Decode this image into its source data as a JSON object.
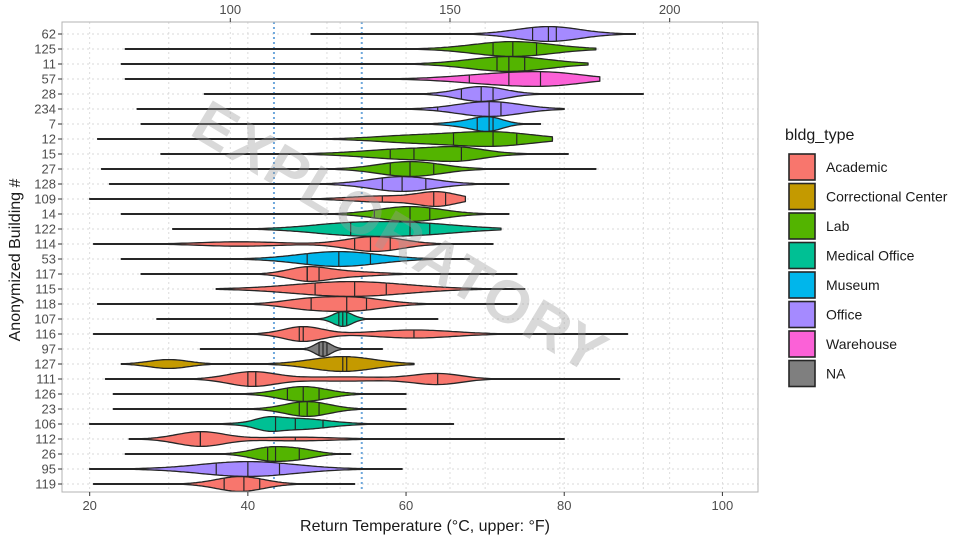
{
  "chart_data": {
    "type": "violin",
    "xlabel": "Return Temperature (°C, upper: °F)",
    "ylabel": "Anonymized Building #",
    "watermark": "EXPLORATORY",
    "xlim": [
      16.5,
      104.5
    ],
    "x_ticks": [
      20,
      40,
      60,
      80,
      100
    ],
    "x_ticks_upper_F": [
      100,
      150,
      200
    ],
    "reference_lines_C": [
      43.3,
      54.4
    ],
    "reference_line_color": "#6fa8dc",
    "grid": true,
    "legend_title": "bldg_type",
    "legend_position": "right",
    "types": [
      {
        "name": "Academic",
        "color": "#F8766D"
      },
      {
        "name": "Correctional Center",
        "color": "#C49A00"
      },
      {
        "name": "Lab",
        "color": "#53B400"
      },
      {
        "name": "Medical Office",
        "color": "#00C094"
      },
      {
        "name": "Museum",
        "color": "#00B6EB"
      },
      {
        "name": "Office",
        "color": "#A58AFF"
      },
      {
        "name": "Warehouse",
        "color": "#FB61D7"
      },
      {
        "name": "NA",
        "color": "#7F7F7F"
      }
    ],
    "buildings": [
      {
        "id": "62",
        "type": "Office",
        "min": 48,
        "max": 89,
        "q1": 76,
        "median": 78,
        "q3": 79,
        "peaks": [
          [
            78,
            1.0,
            4
          ]
        ]
      },
      {
        "id": "125",
        "type": "Lab",
        "min": 24.5,
        "max": 84,
        "q1": 71,
        "median": 73.5,
        "q3": 76.5,
        "peaks": [
          [
            73.5,
            1.0,
            5
          ]
        ]
      },
      {
        "id": "11",
        "type": "Lab",
        "min": 24,
        "max": 83,
        "q1": 71.5,
        "median": 73,
        "q3": 75,
        "peaks": [
          [
            73,
            1.0,
            5
          ]
        ]
      },
      {
        "id": "57",
        "type": "Warehouse",
        "min": 24.5,
        "max": 84.5,
        "q1": 68,
        "median": 73,
        "q3": 77,
        "peaks": [
          [
            73,
            1.0,
            6
          ],
          [
            79,
            0.6,
            4
          ]
        ]
      },
      {
        "id": "28",
        "type": "Office",
        "min": 34.5,
        "max": 90,
        "q1": 67,
        "median": 69.5,
        "q3": 71,
        "peaks": [
          [
            69.5,
            1.0,
            3
          ]
        ]
      },
      {
        "id": "234",
        "type": "Office",
        "min": 26,
        "max": 80,
        "q1": 64,
        "median": 70.5,
        "q3": 72,
        "peaks": [
          [
            70.5,
            1.0,
            4
          ]
        ]
      },
      {
        "id": "7",
        "type": "Museum",
        "min": 26.5,
        "max": 77,
        "q1": 69,
        "median": 70.5,
        "q3": 71,
        "peaks": [
          [
            70.5,
            1.0,
            1.8
          ],
          [
            68,
            0.45,
            2.5
          ]
        ]
      },
      {
        "id": "12",
        "type": "Lab",
        "min": 21,
        "max": 78.5,
        "q1": 66,
        "median": 71,
        "q3": 74,
        "peaks": [
          [
            71,
            1.0,
            5
          ],
          [
            61,
            0.5,
            5
          ]
        ]
      },
      {
        "id": "15",
        "type": "Lab",
        "min": 29,
        "max": 80.5,
        "q1": 58,
        "median": 61,
        "q3": 67,
        "peaks": [
          [
            61,
            1.0,
            6
          ],
          [
            67,
            0.7,
            3
          ]
        ]
      },
      {
        "id": "27",
        "type": "Lab",
        "min": 21.5,
        "max": 84,
        "q1": 58,
        "median": 60.5,
        "q3": 63.5,
        "peaks": [
          [
            60.5,
            1.0,
            4
          ]
        ]
      },
      {
        "id": "128",
        "type": "Office",
        "min": 22.5,
        "max": 73,
        "q1": 57,
        "median": 59.5,
        "q3": 62.5,
        "peaks": [
          [
            59.5,
            1.0,
            4
          ]
        ]
      },
      {
        "id": "109",
        "type": "Academic",
        "min": 20,
        "max": 67.5,
        "q1": 57,
        "median": 63.5,
        "q3": 65,
        "peaks": [
          [
            64,
            1.0,
            2.5
          ],
          [
            57,
            0.45,
            4
          ]
        ]
      },
      {
        "id": "14",
        "type": "Lab",
        "min": 24,
        "max": 73,
        "q1": 56,
        "median": 60.5,
        "q3": 63,
        "peaks": [
          [
            60.5,
            1.0,
            4
          ]
        ]
      },
      {
        "id": "122",
        "type": "Medical Office",
        "min": 30.5,
        "max": 72,
        "q1": 53,
        "median": 60.5,
        "q3": 63,
        "peaks": [
          [
            60.5,
            1.0,
            6
          ],
          [
            52,
            0.7,
            5
          ]
        ]
      },
      {
        "id": "114",
        "type": "Academic",
        "min": 20.5,
        "max": 71,
        "q1": 53.5,
        "median": 55.5,
        "q3": 58,
        "peaks": [
          [
            56,
            1.0,
            3.5
          ],
          [
            39,
            0.3,
            5
          ]
        ]
      },
      {
        "id": "53",
        "type": "Museum",
        "min": 24,
        "max": 68,
        "q1": 47.5,
        "median": 51.5,
        "q3": 55.5,
        "peaks": [
          [
            51.5,
            1.0,
            5
          ]
        ]
      },
      {
        "id": "117",
        "type": "Academic",
        "min": 26.5,
        "max": 74,
        "q1": 47.5,
        "median": 47.5,
        "q3": 49,
        "peaks": [
          [
            47.5,
            1.0,
            2.5
          ],
          [
            52,
            0.45,
            4
          ]
        ]
      },
      {
        "id": "115",
        "type": "Academic",
        "min": 36,
        "max": 75,
        "q1": 48.5,
        "median": 53.5,
        "q3": 57.5,
        "peaks": [
          [
            53,
            1.0,
            7
          ]
        ]
      },
      {
        "id": "118",
        "type": "Academic",
        "min": 21,
        "max": 74,
        "q1": 48,
        "median": 52.5,
        "q3": 55,
        "peaks": [
          [
            53,
            1.0,
            4
          ],
          [
            47,
            0.5,
            3
          ]
        ]
      },
      {
        "id": "107",
        "type": "Medical Office",
        "min": 28.5,
        "max": 64,
        "q1": 51.5,
        "median": 52,
        "q3": 52.5,
        "peaks": [
          [
            52,
            1.0,
            1.2
          ]
        ]
      },
      {
        "id": "116",
        "type": "Academic",
        "min": 20.5,
        "max": 88,
        "q1": 46.5,
        "median": 47,
        "q3": 61,
        "peaks": [
          [
            47,
            1.0,
            2.5
          ],
          [
            61,
            0.55,
            5
          ]
        ]
      },
      {
        "id": "97",
        "type": "NA",
        "min": 34,
        "max": 57,
        "q1": 49,
        "median": 49.5,
        "q3": 50,
        "peaks": [
          [
            49.5,
            1.0,
            1
          ]
        ]
      },
      {
        "id": "127",
        "type": "Correctional Center",
        "min": 24,
        "max": 61,
        "q1": 40.5,
        "median": 52,
        "q3": 52.5,
        "peaks": [
          [
            52,
            1.0,
            4
          ],
          [
            30,
            0.6,
            2.5
          ]
        ]
      },
      {
        "id": "111",
        "type": "Academic",
        "min": 22,
        "max": 87,
        "q1": 40,
        "median": 41,
        "q3": 64,
        "peaks": [
          [
            40.5,
            1.0,
            3
          ],
          [
            64,
            0.75,
            3
          ],
          [
            52,
            0.3,
            6
          ]
        ]
      },
      {
        "id": "126",
        "type": "Lab",
        "min": 23,
        "max": 60,
        "q1": 45,
        "median": 47,
        "q3": 49,
        "peaks": [
          [
            47,
            1.0,
            3
          ]
        ]
      },
      {
        "id": "23",
        "type": "Lab",
        "min": 23,
        "max": 60,
        "q1": 46.5,
        "median": 47.5,
        "q3": 49,
        "peaks": [
          [
            47.5,
            1.0,
            2.8
          ]
        ]
      },
      {
        "id": "106",
        "type": "Medical Office",
        "min": 20,
        "max": 66,
        "q1": 43.5,
        "median": 46,
        "q3": 49.5,
        "peaks": [
          [
            46,
            1.0,
            4
          ],
          [
            42.5,
            0.6,
            1.5
          ]
        ]
      },
      {
        "id": "112",
        "type": "Academic",
        "min": 25,
        "max": 80,
        "q1": 34,
        "median": 34,
        "q3": 46,
        "peaks": [
          [
            34,
            1.0,
            3
          ],
          [
            46,
            0.25,
            5
          ]
        ]
      },
      {
        "id": "26",
        "type": "Lab",
        "min": 24.5,
        "max": 53,
        "q1": 42.5,
        "median": 43.5,
        "q3": 46.5,
        "peaks": [
          [
            43,
            1.0,
            2.5
          ],
          [
            47,
            0.5,
            2
          ]
        ]
      },
      {
        "id": "95",
        "type": "Office",
        "min": 20,
        "max": 59.5,
        "q1": 36,
        "median": 40,
        "q3": 44,
        "peaks": [
          [
            40,
            1.0,
            6
          ]
        ]
      },
      {
        "id": "119",
        "type": "Academic",
        "min": 20.5,
        "max": 53.5,
        "q1": 37,
        "median": 39.5,
        "q3": 41.5,
        "peaks": [
          [
            39,
            1.0,
            3
          ]
        ]
      }
    ]
  }
}
